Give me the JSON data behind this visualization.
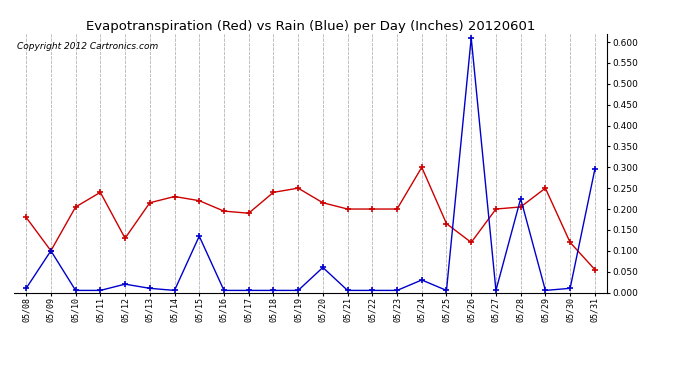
{
  "title": "Evapotranspiration (Red) vs Rain (Blue) per Day (Inches) 20120601",
  "copyright": "Copyright 2012 Cartronics.com",
  "dates": [
    "05/08",
    "05/09",
    "05/10",
    "05/11",
    "05/12",
    "05/13",
    "05/14",
    "05/15",
    "05/16",
    "05/17",
    "05/18",
    "05/19",
    "05/20",
    "05/21",
    "05/22",
    "05/23",
    "05/24",
    "05/25",
    "05/26",
    "05/27",
    "05/28",
    "05/29",
    "05/30",
    "05/31"
  ],
  "red_et": [
    0.18,
    0.1,
    0.205,
    0.24,
    0.13,
    0.215,
    0.23,
    0.22,
    0.195,
    0.19,
    0.24,
    0.25,
    0.215,
    0.2,
    0.2,
    0.2,
    0.3,
    0.165,
    0.12,
    0.2,
    0.205,
    0.25,
    0.12,
    0.055
  ],
  "blue_rain": [
    0.01,
    0.1,
    0.005,
    0.005,
    0.02,
    0.01,
    0.005,
    0.135,
    0.005,
    0.005,
    0.005,
    0.005,
    0.06,
    0.005,
    0.005,
    0.005,
    0.03,
    0.005,
    0.61,
    0.005,
    0.225,
    0.005,
    0.01,
    0.295
  ],
  "ylim": [
    0.0,
    0.62
  ],
  "yticks": [
    0.0,
    0.05,
    0.1,
    0.15,
    0.2,
    0.25,
    0.3,
    0.35,
    0.4,
    0.45,
    0.5,
    0.55,
    0.6
  ],
  "red_color": "#cc0000",
  "blue_color": "#0000cc",
  "bg_color": "#ffffff",
  "grid_color": "#c0c0c0",
  "title_fontsize": 9.5,
  "copyright_fontsize": 6.5
}
